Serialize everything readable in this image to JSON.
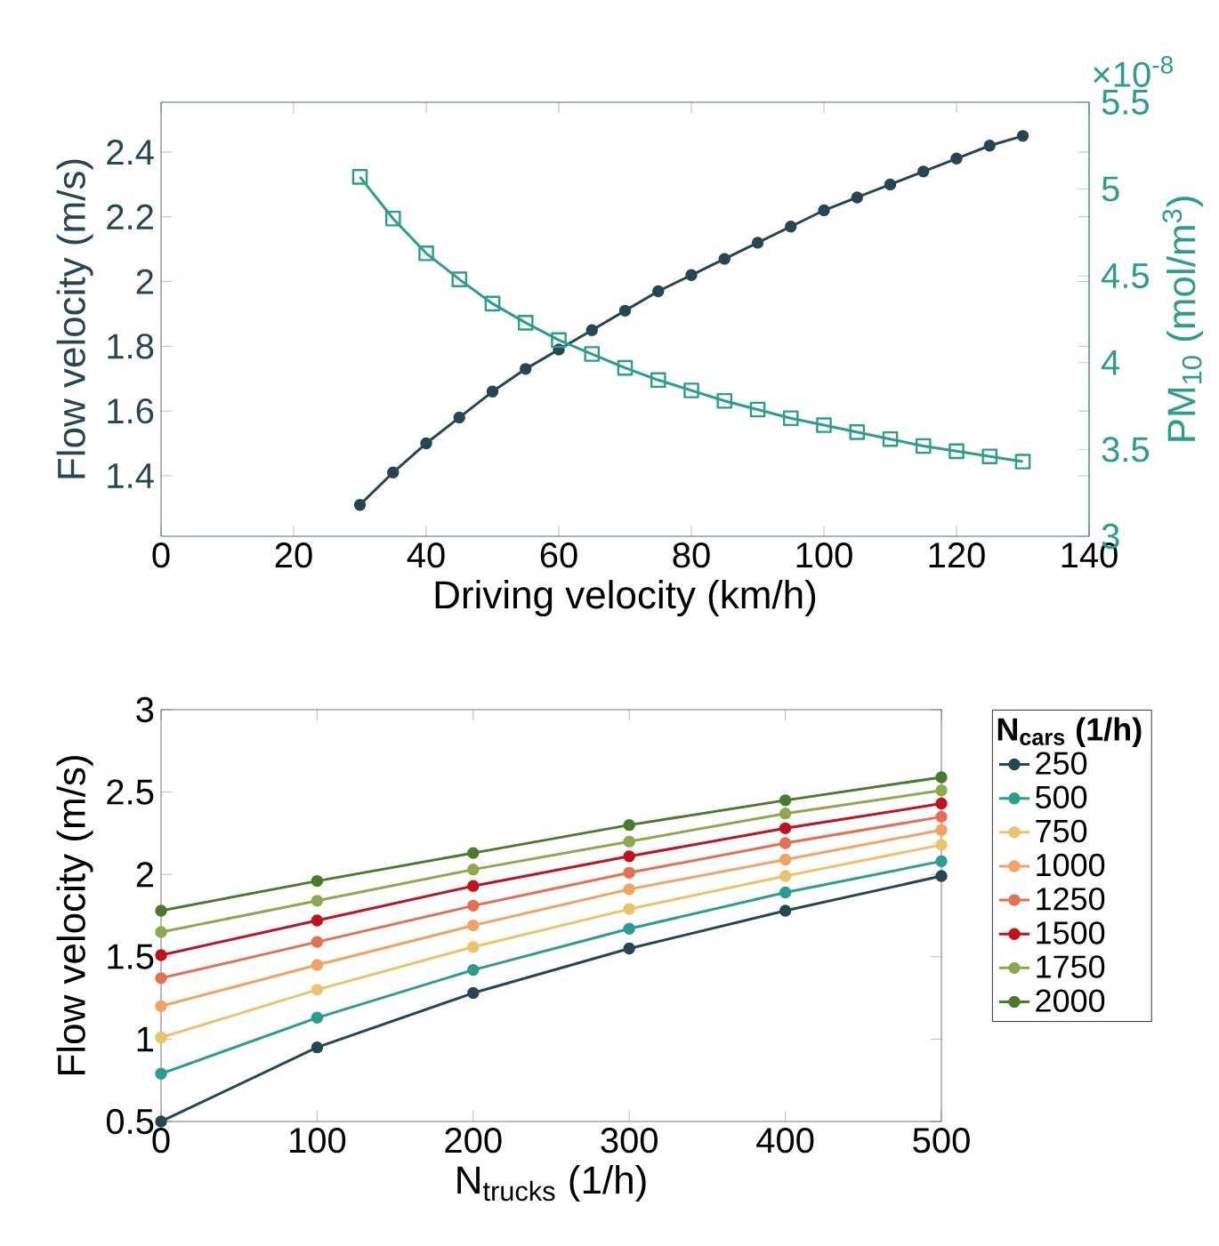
{
  "chart_data": [
    {
      "type": "line",
      "xlabel": "Driving velocity (km/h)",
      "ylabel": "Flow velocity (m/s)",
      "y2label": "PM$_{10}$ (mol/m$^{3}$)",
      "x": [
        30,
        35,
        40,
        45,
        50,
        55,
        60,
        65,
        70,
        75,
        80,
        85,
        90,
        95,
        100,
        105,
        110,
        115,
        120,
        125,
        130
      ],
      "xlim": [
        0,
        140
      ],
      "xticks": [
        0,
        20,
        40,
        60,
        80,
        100,
        120,
        140
      ],
      "ylim": [
        1.213,
        2.554
      ],
      "yticks": [
        1.4,
        1.6,
        1.8,
        2,
        2.2,
        2.4
      ],
      "y2lim": [
        3,
        5.5
      ],
      "y2ticks": [
        3,
        3.5,
        4,
        4.5,
        5,
        5.5
      ],
      "annotations": [
        "×10$^{-8}$"
      ],
      "series": [
        {
          "color": "#264653",
          "marker": "circle",
          "values": [
            1.31,
            1.41,
            1.5,
            1.58,
            1.66,
            1.73,
            1.79,
            1.85,
            1.91,
            1.97,
            2.02,
            2.07,
            2.12,
            2.17,
            2.22,
            2.26,
            2.3,
            2.34,
            2.38,
            2.42,
            2.45
          ]
        },
        {
          "color": "#2a9d8f",
          "marker": "square",
          "axis": "y2",
          "values": [
            5.07,
            4.83,
            4.63,
            4.48,
            4.34,
            4.23,
            4.13,
            4.05,
            3.97,
            3.9,
            3.84,
            3.78,
            3.73,
            3.68,
            3.64,
            3.6,
            3.56,
            3.52,
            3.49,
            3.46,
            3.43
          ]
        }
      ]
    },
    {
      "type": "line",
      "xlabel": "N$_{trucks}$ (1/h)",
      "ylabel": "Flow velocity (m/s)",
      "legend_title": "N$_{cars}$ (1/h)",
      "legend": "right",
      "marker": "circle",
      "x": [
        0,
        100,
        200,
        300,
        400,
        500
      ],
      "xlim": [
        0,
        500
      ],
      "xticks": [
        0,
        100,
        200,
        300,
        400,
        500
      ],
      "ylim": [
        0.5,
        3
      ],
      "yticks": [
        0.5,
        1,
        1.5,
        2,
        2.5,
        3
      ],
      "series": [
        {
          "name": "250",
          "color": "#264653",
          "values": [
            0.5,
            0.95,
            1.28,
            1.55,
            1.78,
            1.99
          ]
        },
        {
          "name": "500",
          "color": "#2a9d8f",
          "values": [
            0.79,
            1.13,
            1.42,
            1.67,
            1.89,
            2.08
          ]
        },
        {
          "name": "750",
          "color": "#e9c46a",
          "values": [
            1.01,
            1.3,
            1.56,
            1.79,
            1.99,
            2.18
          ]
        },
        {
          "name": "1000",
          "color": "#f4a261",
          "values": [
            1.2,
            1.45,
            1.69,
            1.91,
            2.09,
            2.27
          ]
        },
        {
          "name": "1250",
          "color": "#e76f51",
          "values": [
            1.37,
            1.59,
            1.81,
            2.01,
            2.19,
            2.35
          ]
        },
        {
          "name": "1500",
          "color": "#c1121f",
          "values": [
            1.51,
            1.72,
            1.93,
            2.11,
            2.28,
            2.43
          ]
        },
        {
          "name": "1750",
          "color": "#8fa84f",
          "values": [
            1.65,
            1.84,
            2.03,
            2.2,
            2.37,
            2.51
          ]
        },
        {
          "name": "2000",
          "color": "#4a7a2a",
          "values": [
            1.78,
            1.96,
            2.13,
            2.3,
            2.45,
            2.59
          ]
        }
      ]
    }
  ]
}
